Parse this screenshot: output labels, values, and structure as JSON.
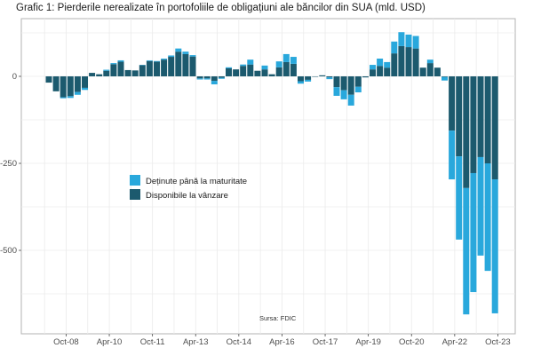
{
  "title": "Grafic 1: Pierderile nerealizate în portofoliile de obligațiuni ale băncilor din SUA (mld. USD)",
  "source": "Sursa: FDIC",
  "colors": {
    "htm": "#29a8dc",
    "afs": "#1c5a6e",
    "grid": "#ebebeb",
    "axis": "#b3b3b3"
  },
  "chart_data": {
    "type": "bar",
    "stacked": true,
    "title": "Grafic 1: Pierderile nerealizate în portofoliile de obligațiuni ale băncilor din SUA (mld. USD)",
    "xlabel": "",
    "ylabel": "",
    "ylim": [
      -740,
      166
    ],
    "yticks": [
      0,
      -250,
      -500
    ],
    "ytick_labels": [
      "0",
      "-250",
      "-500"
    ],
    "xtick_labels": [
      "Oct-08",
      "Apr-10",
      "Oct-11",
      "Apr-13",
      "Oct-14",
      "Apr-16",
      "Oct-17",
      "Apr-19",
      "Oct-20",
      "Apr-22",
      "Oct-23"
    ],
    "xtick_quarter_index": [
      2.4,
      8.4,
      14.4,
      20.4,
      26.4,
      32.4,
      38.4,
      44.4,
      50.4,
      56.4,
      62.4
    ],
    "grid": true,
    "legend_position": "center-left",
    "annotation": "Sursa: FDIC",
    "period": "Q1 2008 – Q3 2023 (quarterly)",
    "series": [
      {
        "name": "Disponibile la vânzare",
        "key": "afs",
        "values": [
          -18,
          -43,
          -60,
          -57,
          -45,
          -33,
          10,
          6,
          16,
          35,
          42,
          18,
          17,
          32,
          44,
          42,
          48,
          56,
          71,
          64,
          57,
          -6,
          -6,
          -13,
          -4,
          23,
          20,
          30,
          34,
          16,
          20,
          6,
          26,
          41,
          36,
          -14,
          -10,
          -1,
          3,
          -3,
          -31,
          -40,
          -53,
          -30,
          -3,
          20,
          30,
          25,
          66,
          87,
          84,
          80,
          25,
          38,
          25,
          -2,
          -156,
          -230,
          -321,
          -278,
          -232,
          -250,
          -296
        ]
      },
      {
        "name": "Deținute până la maturitate",
        "key": "htm",
        "values": [
          0,
          0,
          -3,
          -5,
          -8,
          -6,
          0,
          0,
          3,
          3,
          4,
          0,
          0,
          1,
          2,
          2,
          3,
          4,
          9,
          7,
          4,
          -3,
          -3,
          -10,
          -3,
          3,
          0,
          4,
          14,
          0,
          11,
          0,
          17,
          23,
          20,
          -7,
          -5,
          0,
          0,
          -5,
          -25,
          -26,
          -31,
          -16,
          0,
          13,
          21,
          16,
          34,
          40,
          36,
          36,
          0,
          10,
          0,
          -10,
          -140,
          -239,
          -363,
          -342,
          -283,
          -309,
          -385
        ]
      }
    ]
  }
}
